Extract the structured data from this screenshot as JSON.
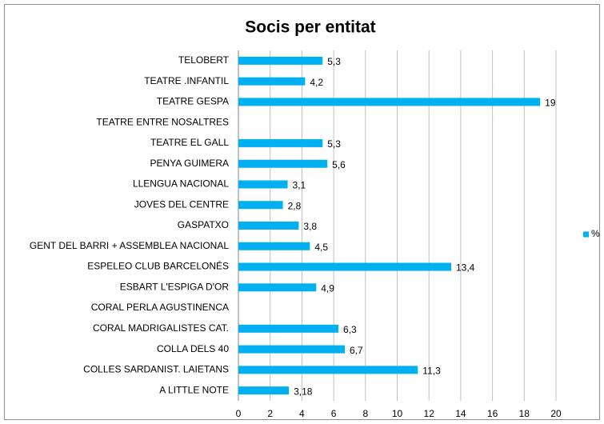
{
  "chart_data": {
    "type": "bar",
    "orientation": "horizontal",
    "title": "Socis per entitat",
    "categories": [
      "TELOBERT",
      "TEATRE .INFANTIL",
      "TEATRE GESPA",
      "TEATRE ENTRE NOSALTRES",
      "TEATRE EL GALL",
      "PENYA GUIMERA",
      "LLENGUA NACIONAL",
      "JOVES DEL CENTRE",
      "GASPATXO",
      "GENT DEL BARRI + ASSEMBLEA NACIONAL",
      "ESPELEO CLUB BARCELONÉS",
      "ESBART L'ESPIGA D'OR",
      "CORAL PERLA AGUSTINENCA",
      "CORAL MADRIGALISTES CAT.",
      "COLLA DELS 40",
      "COLLES SARDANIST. LAIETANS",
      "A LITTLE NOTE"
    ],
    "series": [
      {
        "name": "%",
        "color": "#00b0f0",
        "values": [
          5.3,
          4.2,
          19,
          null,
          5.3,
          5.6,
          3.1,
          2.8,
          3.8,
          4.5,
          13.4,
          4.9,
          null,
          6.3,
          6.7,
          11.3,
          3.18
        ],
        "value_labels": [
          "5,3",
          "4,2",
          "19",
          null,
          "5,3",
          "5,6",
          "3,1",
          "2,8",
          "3,8",
          "4,5",
          "13,4",
          "4,9",
          null,
          "6,3",
          "6,7",
          "11,3",
          "3,18"
        ]
      }
    ],
    "xlim": [
      0,
      20
    ],
    "xticks": [
      0,
      2,
      4,
      6,
      8,
      10,
      12,
      14,
      16,
      18,
      20
    ],
    "grid": true,
    "legend": "right"
  }
}
